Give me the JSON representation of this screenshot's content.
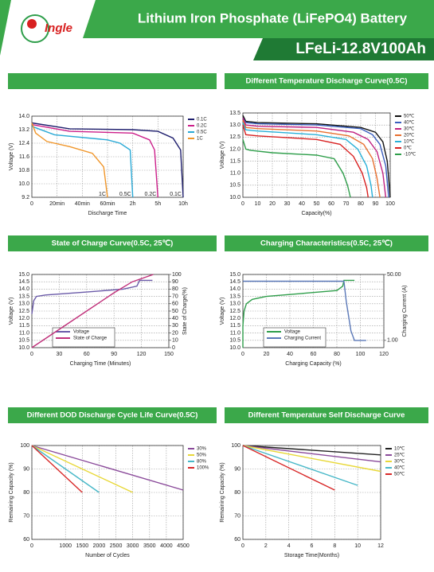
{
  "header": {
    "logo": "Ingle",
    "title": "Lithium Iron Phosphate (LiFePO4) Battery",
    "model": "LFeLi-12.8V100Ah"
  },
  "chart_data": [
    {
      "type": "line",
      "ylabel": "Voltage (V)",
      "xlabel": "Discharge Time",
      "xscale": "piecewise",
      "grid": true,
      "legend": "right",
      "end_labels": true,
      "xlim": [
        0,
        10
      ],
      "xticks": [
        0,
        {
          "value": 0.333,
          "label": "20min"
        },
        {
          "value": 0.667,
          "label": "40min"
        },
        {
          "value": 1,
          "label": "60min"
        },
        {
          "value": 2,
          "label": "2h"
        },
        {
          "value": 5,
          "label": "5h"
        },
        {
          "value": 10,
          "label": "10h"
        }
      ],
      "ylim": [
        9.2,
        14.0
      ],
      "yticks": [
        9.2,
        {
          "value": 10,
          "label": "10.0"
        },
        10.8,
        11.6,
        12.4,
        13.2,
        {
          "value": 14,
          "label": "14.0"
        }
      ],
      "series": [
        {
          "name": "0.1C",
          "color": "#1f1f6e",
          "x": [
            0,
            0.5,
            2,
            5,
            8,
            9.5,
            10
          ],
          "values": [
            13.6,
            13.25,
            13.2,
            13.1,
            12.7,
            12.0,
            9.2
          ]
        },
        {
          "name": "0.2C",
          "color": "#cc1f8a",
          "x": [
            0,
            0.5,
            2,
            4,
            4.6,
            5
          ],
          "values": [
            13.5,
            13.1,
            13.0,
            12.6,
            12.0,
            9.2
          ]
        },
        {
          "name": "0.5C",
          "color": "#29a9d6",
          "x": [
            0,
            0.3,
            1,
            1.5,
            1.9,
            2
          ],
          "values": [
            13.4,
            12.9,
            12.6,
            12.4,
            12.0,
            9.2
          ]
        },
        {
          "name": "1C",
          "color": "#f0962a",
          "x": [
            0,
            0.05,
            0.2,
            0.5,
            0.8,
            0.95,
            1
          ],
          "values": [
            13.6,
            13.0,
            12.5,
            12.2,
            11.8,
            11.0,
            9.2
          ]
        }
      ]
    },
    {
      "type": "line",
      "title": "Different Temperature Discharge Curve(0.5C)",
      "ylabel": "Voltage (V)",
      "xlabel": "Capacity(%)",
      "grid": true,
      "legend": "right",
      "xlim": [
        0,
        100
      ],
      "xticks": [
        0,
        10,
        20,
        30,
        40,
        50,
        60,
        70,
        80,
        90,
        100
      ],
      "ylim": [
        10,
        13.5
      ],
      "yticks": [
        {
          "value": 10,
          "label": "10.0"
        },
        10.5,
        {
          "value": 11,
          "label": "11.0"
        },
        11.5,
        {
          "value": 12,
          "label": "12.0"
        },
        12.5,
        {
          "value": 13,
          "label": "13.0"
        },
        13.5
      ],
      "series": [
        {
          "name": "50℃",
          "color": "#111111",
          "x": [
            0,
            2,
            10,
            50,
            80,
            90,
            95,
            98,
            100
          ],
          "values": [
            13.4,
            13.15,
            13.1,
            13.05,
            12.9,
            12.7,
            12.3,
            11.5,
            10.0
          ]
        },
        {
          "name": "40℃",
          "color": "#3a5fbf",
          "x": [
            0,
            2,
            10,
            50,
            80,
            88,
            93,
            97,
            99
          ],
          "values": [
            13.3,
            13.1,
            13.05,
            13.0,
            12.85,
            12.6,
            12.2,
            11.3,
            10.0
          ]
        },
        {
          "name": "30℃",
          "color": "#c02080",
          "x": [
            0,
            2,
            10,
            50,
            75,
            85,
            91,
            95,
            97
          ],
          "values": [
            13.3,
            13.0,
            12.95,
            12.9,
            12.7,
            12.4,
            11.9,
            11.0,
            10.0
          ]
        },
        {
          "name": "20℃",
          "color": "#e87030",
          "x": [
            0,
            2,
            10,
            50,
            72,
            82,
            88,
            91,
            93
          ],
          "values": [
            13.2,
            12.9,
            12.85,
            12.75,
            12.55,
            12.2,
            11.6,
            10.8,
            10.0
          ]
        },
        {
          "name": "10℃",
          "color": "#28b0d8",
          "x": [
            0,
            2,
            10,
            50,
            70,
            78,
            84,
            87,
            88
          ],
          "values": [
            13.1,
            12.8,
            12.75,
            12.6,
            12.4,
            12.0,
            11.3,
            10.5,
            10.0
          ]
        },
        {
          "name": "0℃",
          "color": "#d82020",
          "x": [
            0,
            2,
            10,
            50,
            66,
            75,
            81,
            84,
            85
          ],
          "values": [
            13.0,
            12.6,
            12.55,
            12.4,
            12.2,
            11.7,
            11.0,
            10.4,
            10.0
          ]
        },
        {
          "name": "-10℃",
          "color": "#2e9e4a",
          "x": [
            0,
            2,
            5,
            20,
            50,
            62,
            68,
            71,
            73
          ],
          "values": [
            12.4,
            12.0,
            11.95,
            11.85,
            11.75,
            11.6,
            11.0,
            10.5,
            10.0
          ]
        }
      ]
    },
    {
      "type": "line",
      "title": "State of Charge Curve(0.5C, 25℃)",
      "ylabel": "Voltage (V)",
      "y2label": "State of Charge(%)",
      "xlabel": "Charging Time (Minutes)",
      "grid": true,
      "legend": "lower-left",
      "xlim": [
        0,
        150
      ],
      "xticks": [
        0,
        30,
        60,
        90,
        120,
        150
      ],
      "ylim": [
        10,
        15
      ],
      "yticks": [
        {
          "value": 10,
          "label": "10.0"
        },
        10.5,
        {
          "value": 11,
          "label": "11.0"
        },
        11.5,
        {
          "value": 12,
          "label": "12.0"
        },
        12.5,
        {
          "value": 13,
          "label": "13.0"
        },
        13.5,
        {
          "value": 14,
          "label": "14.0"
        },
        14.5,
        {
          "value": 15,
          "label": "15.0"
        }
      ],
      "y2lim": [
        0,
        100
      ],
      "y2ticks": [
        0,
        10,
        20,
        30,
        40,
        50,
        60,
        70,
        80,
        90,
        100
      ],
      "series": [
        {
          "name": "Voltage",
          "color": "#6a5aa8",
          "x": [
            0,
            2,
            5,
            15,
            60,
            100,
            115,
            118,
            132
          ],
          "values": [
            12.3,
            13.2,
            13.5,
            13.6,
            13.8,
            14.0,
            14.2,
            14.6,
            14.6
          ]
        },
        {
          "name": "State of Charge",
          "color": "#c0307a",
          "axis": "y2",
          "x": [
            0,
            30,
            60,
            90,
            110,
            133
          ],
          "values": [
            0,
            25,
            50,
            75,
            90,
            100
          ]
        }
      ]
    },
    {
      "type": "line",
      "title": "Charging Characteristics(0.5C, 25℃)",
      "ylabel": "Voltage (V)",
      "y2label": "Charging Current (A)",
      "xlabel": "Charging Capacity (%)",
      "grid": true,
      "legend": "lower-left",
      "xlim": [
        0,
        120
      ],
      "xticks": [
        0,
        20,
        40,
        60,
        80,
        100,
        120
      ],
      "ylim": [
        10,
        15
      ],
      "yticks": [
        {
          "value": 10,
          "label": "10.0"
        },
        10.5,
        {
          "value": 11,
          "label": "11.0"
        },
        11.5,
        {
          "value": 12,
          "label": "12.0"
        },
        12.5,
        {
          "value": 13,
          "label": "13.0"
        },
        13.5,
        {
          "value": 14,
          "label": "14.0"
        },
        14.5,
        {
          "value": 15,
          "label": "15.0"
        }
      ],
      "y2lim": [
        -4.4,
        50
      ],
      "y2ticks": [
        {
          "value": 1,
          "label": "1.00"
        },
        {
          "value": 50,
          "label": "50.00"
        }
      ],
      "series": [
        {
          "name": "Voltage",
          "color": "#2e9e4a",
          "x": [
            0,
            0,
            1,
            3,
            8,
            20,
            50,
            80,
            85,
            86,
            95
          ],
          "values": [
            10.0,
            11.5,
            12.5,
            13.0,
            13.3,
            13.5,
            13.7,
            13.9,
            14.2,
            14.6,
            14.6
          ]
        },
        {
          "name": "Charging Current",
          "color": "#5a78b8",
          "axis": "y2",
          "x": [
            0,
            86,
            88,
            92,
            95,
            105
          ],
          "values": [
            45,
            45,
            30,
            8,
            1,
            1
          ]
        }
      ]
    },
    {
      "type": "line",
      "title": "Different DOD Discharge Cycle Life Curve(0.5C)",
      "ylabel": "Remaining Capacity (%)",
      "xlabel": "Number of Cycles",
      "grid": true,
      "legend": "right",
      "xlim": [
        0,
        4500
      ],
      "xticks": [
        0,
        1000,
        1500,
        2000,
        2500,
        3000,
        3500,
        4000,
        4500
      ],
      "ylim": [
        60,
        100
      ],
      "yticks": [
        60,
        70,
        80,
        90,
        100
      ],
      "series": [
        {
          "name": "30%",
          "color": "#8a4a9a",
          "x": [
            0,
            4500
          ],
          "values": [
            100,
            81
          ]
        },
        {
          "name": "50%",
          "color": "#e8d838",
          "x": [
            0,
            3000
          ],
          "values": [
            100,
            80
          ]
        },
        {
          "name": "80%",
          "color": "#48b8c8",
          "x": [
            0,
            2000
          ],
          "values": [
            100,
            80
          ]
        },
        {
          "name": "100%",
          "color": "#d82828",
          "x": [
            0,
            1500
          ],
          "values": [
            100,
            80
          ]
        }
      ]
    },
    {
      "type": "line",
      "title": "Different Temperature Self Discharge Curve",
      "ylabel": "Remaining Capacity (%)",
      "xlabel": "Storage Time(Months)",
      "grid": true,
      "legend": "right",
      "xlim": [
        0,
        12
      ],
      "xticks": [
        0,
        2,
        4,
        6,
        8,
        10,
        12
      ],
      "ylim": [
        60,
        100
      ],
      "yticks": [
        60,
        70,
        80,
        90,
        100
      ],
      "series": [
        {
          "name": "10℃",
          "color": "#222222",
          "x": [
            0,
            12
          ],
          "values": [
            100,
            96
          ]
        },
        {
          "name": "25℃",
          "color": "#8a4a9a",
          "x": [
            0,
            12
          ],
          "values": [
            100,
            93
          ]
        },
        {
          "name": "30℃",
          "color": "#e8d838",
          "x": [
            0,
            12
          ],
          "values": [
            100,
            89
          ]
        },
        {
          "name": "40℃",
          "color": "#48b8c8",
          "x": [
            0,
            10
          ],
          "values": [
            100,
            83
          ]
        },
        {
          "name": "50℃",
          "color": "#d82828",
          "x": [
            0,
            8
          ],
          "values": [
            100,
            81
          ]
        }
      ]
    }
  ]
}
